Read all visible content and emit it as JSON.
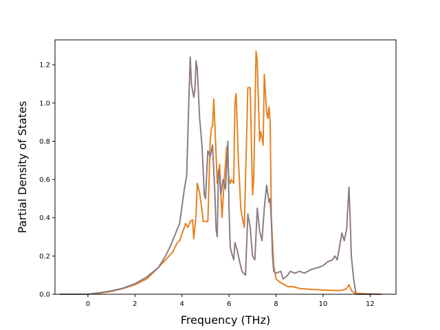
{
  "chart_data": {
    "type": "line",
    "xlabel": "Frequency (THz)",
    "ylabel": "Partial Density of States",
    "xlim": [
      -1.4,
      13.1
    ],
    "ylim": [
      0,
      1.33
    ],
    "grid": false,
    "x_ticks": [
      {
        "value": 0,
        "label": "0"
      },
      {
        "value": 2,
        "label": "2"
      },
      {
        "value": 4,
        "label": "4"
      },
      {
        "value": 6,
        "label": "6"
      },
      {
        "value": 8,
        "label": "8"
      },
      {
        "value": 10,
        "label": "10"
      },
      {
        "value": 12,
        "label": "12"
      }
    ],
    "y_ticks": [
      {
        "value": 0.0,
        "label": "0.0"
      },
      {
        "value": 0.2,
        "label": "0.2"
      },
      {
        "value": 0.4,
        "label": "0.4"
      },
      {
        "value": 0.6,
        "label": "0.6"
      },
      {
        "value": 0.8,
        "label": "0.8"
      },
      {
        "value": 1.0,
        "label": "1.0"
      },
      {
        "value": 1.2,
        "label": "1.2"
      }
    ],
    "series": [
      {
        "color": "#e6811e",
        "points": [
          [
            -1.2,
            0
          ],
          [
            0,
            0
          ],
          [
            0.5,
            0.006
          ],
          [
            1,
            0.015
          ],
          [
            1.5,
            0.03
          ],
          [
            2,
            0.05
          ],
          [
            2.5,
            0.08
          ],
          [
            3,
            0.14
          ],
          [
            3.3,
            0.18
          ],
          [
            3.6,
            0.22
          ],
          [
            3.8,
            0.27
          ],
          [
            3.9,
            0.28
          ],
          [
            4.1,
            0.35
          ],
          [
            4.15,
            0.37
          ],
          [
            4.25,
            0.35
          ],
          [
            4.35,
            0.38
          ],
          [
            4.45,
            0.39
          ],
          [
            4.5,
            0.29
          ],
          [
            4.55,
            0.35
          ],
          [
            4.6,
            0.42
          ],
          [
            4.65,
            0.58
          ],
          [
            4.75,
            0.53
          ],
          [
            4.85,
            0.44
          ],
          [
            4.9,
            0.38
          ],
          [
            5.0,
            0.38
          ],
          [
            5.1,
            0.38
          ],
          [
            5.2,
            0.8
          ],
          [
            5.25,
            0.87
          ],
          [
            5.3,
            0.88
          ],
          [
            5.35,
            1.02
          ],
          [
            5.4,
            0.88
          ],
          [
            5.5,
            0.58
          ],
          [
            5.6,
            0.68
          ],
          [
            5.7,
            0.4
          ],
          [
            5.8,
            0.6
          ],
          [
            5.9,
            0.77
          ],
          [
            6.0,
            0.6
          ],
          [
            6.05,
            0.58
          ],
          [
            6.1,
            0.6
          ],
          [
            6.2,
            0.58
          ],
          [
            6.25,
            1.0
          ],
          [
            6.3,
            1.05
          ],
          [
            6.4,
            0.7
          ],
          [
            6.5,
            0.45
          ],
          [
            6.55,
            0.41
          ],
          [
            6.6,
            0.38
          ],
          [
            6.65,
            0.35
          ],
          [
            6.8,
            1.08
          ],
          [
            6.9,
            1.08
          ],
          [
            7.0,
            0.52
          ],
          [
            7.05,
            0.6
          ],
          [
            7.15,
            1.27
          ],
          [
            7.2,
            1.22
          ],
          [
            7.3,
            0.8
          ],
          [
            7.35,
            0.85
          ],
          [
            7.4,
            0.82
          ],
          [
            7.45,
            0.78
          ],
          [
            7.5,
            1.15
          ],
          [
            7.6,
            0.95
          ],
          [
            7.65,
            0.92
          ],
          [
            7.7,
            0.98
          ],
          [
            7.75,
            0.9
          ],
          [
            7.8,
            0.4
          ],
          [
            7.9,
            0.15
          ],
          [
            8.0,
            0.08
          ],
          [
            8.2,
            0.06
          ],
          [
            8.5,
            0.04
          ],
          [
            8.7,
            0.04
          ],
          [
            9.0,
            0.03
          ],
          [
            9.5,
            0.025
          ],
          [
            10,
            0.022
          ],
          [
            10.5,
            0.02
          ],
          [
            10.8,
            0.02
          ],
          [
            11.0,
            0.03
          ],
          [
            11.1,
            0.05
          ],
          [
            11.2,
            0.02
          ],
          [
            11.35,
            0.005
          ],
          [
            12.5,
            0
          ]
        ]
      },
      {
        "color": "#8c7b82",
        "points": [
          [
            -1.2,
            0
          ],
          [
            0,
            0
          ],
          [
            0.5,
            0.008
          ],
          [
            1,
            0.018
          ],
          [
            1.5,
            0.032
          ],
          [
            2,
            0.055
          ],
          [
            2.5,
            0.09
          ],
          [
            3,
            0.14
          ],
          [
            3.3,
            0.2
          ],
          [
            3.5,
            0.25
          ],
          [
            3.7,
            0.31
          ],
          [
            3.9,
            0.37
          ],
          [
            4.1,
            0.55
          ],
          [
            4.2,
            0.62
          ],
          [
            4.3,
            1.05
          ],
          [
            4.35,
            1.24
          ],
          [
            4.4,
            1.1
          ],
          [
            4.5,
            1.03
          ],
          [
            4.55,
            1.07
          ],
          [
            4.6,
            1.22
          ],
          [
            4.65,
            1.18
          ],
          [
            4.75,
            0.92
          ],
          [
            4.85,
            0.78
          ],
          [
            4.95,
            0.52
          ],
          [
            5.0,
            0.5
          ],
          [
            5.1,
            0.75
          ],
          [
            5.2,
            0.72
          ],
          [
            5.3,
            0.78
          ],
          [
            5.4,
            0.52
          ],
          [
            5.45,
            0.34
          ],
          [
            5.5,
            0.3
          ],
          [
            5.55,
            0.65
          ],
          [
            5.6,
            0.62
          ],
          [
            5.65,
            0.52
          ],
          [
            5.75,
            0.6
          ],
          [
            5.85,
            0.55
          ],
          [
            5.95,
            0.8
          ],
          [
            6.0,
            0.45
          ],
          [
            6.05,
            0.25
          ],
          [
            6.1,
            0.22
          ],
          [
            6.2,
            0.18
          ],
          [
            6.25,
            0.27
          ],
          [
            6.35,
            0.23
          ],
          [
            6.45,
            0.17
          ],
          [
            6.55,
            0.12
          ],
          [
            6.7,
            0.1
          ],
          [
            6.8,
            0.42
          ],
          [
            6.9,
            0.35
          ],
          [
            7.0,
            0.2
          ],
          [
            7.1,
            0.18
          ],
          [
            7.2,
            0.45
          ],
          [
            7.3,
            0.33
          ],
          [
            7.4,
            0.28
          ],
          [
            7.5,
            0.45
          ],
          [
            7.6,
            0.57
          ],
          [
            7.7,
            0.48
          ],
          [
            7.75,
            0.5
          ],
          [
            7.8,
            0.38
          ],
          [
            7.85,
            0.2
          ],
          [
            7.9,
            0.12
          ],
          [
            8.0,
            0.11
          ],
          [
            8.2,
            0.12
          ],
          [
            8.3,
            0.08
          ],
          [
            8.5,
            0.1
          ],
          [
            8.6,
            0.12
          ],
          [
            8.8,
            0.11
          ],
          [
            9.0,
            0.12
          ],
          [
            9.2,
            0.11
          ],
          [
            9.5,
            0.13
          ],
          [
            9.8,
            0.14
          ],
          [
            10.0,
            0.15
          ],
          [
            10.2,
            0.17
          ],
          [
            10.4,
            0.18
          ],
          [
            10.5,
            0.2
          ],
          [
            10.6,
            0.18
          ],
          [
            10.8,
            0.32
          ],
          [
            10.9,
            0.28
          ],
          [
            11.0,
            0.34
          ],
          [
            11.05,
            0.45
          ],
          [
            11.1,
            0.56
          ],
          [
            11.15,
            0.4
          ],
          [
            11.2,
            0.2
          ],
          [
            11.3,
            0.08
          ],
          [
            11.4,
            0
          ],
          [
            12.5,
            0
          ]
        ]
      }
    ]
  }
}
